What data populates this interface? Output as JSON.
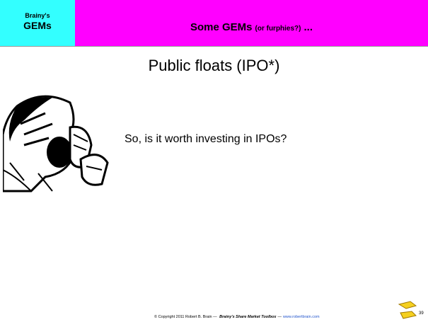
{
  "header": {
    "logo": [
      "Brainy's",
      "GEMs"
    ],
    "title": "Some GEMs",
    "title_note": "(or furphies?)",
    "title_suffix": "..."
  },
  "slide": {
    "title": "Public floats (IPO*)",
    "body": "So, is it worth investing in IPOs?"
  },
  "footer": {
    "copyright": "© Copyright 2011 Robert B. Brain —",
    "book": "Brainy's Share Market Toolbox",
    "separator": "—",
    "url": "www.robertbrain.com",
    "page": "39"
  }
}
